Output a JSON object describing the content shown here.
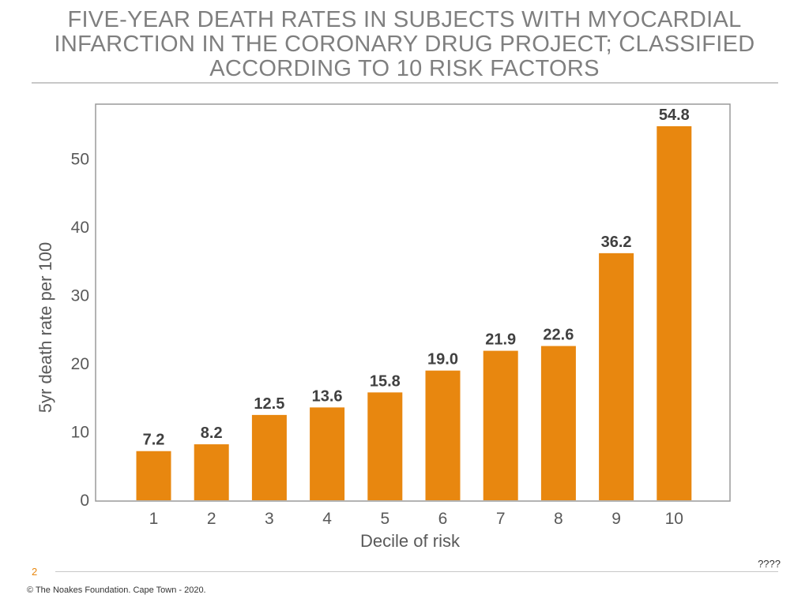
{
  "slide": {
    "title": "FIVE-YEAR DEATH RATES IN SUBJECTS WITH MYOCARDIAL INFARCTION IN THE CORONARY DRUG PROJECT; CLASSIFIED ACCORDING TO 10 RISK FACTORS",
    "page_number": "2",
    "note": "????",
    "copyright": "© The Noakes Foundation. Cape Town - 2020."
  },
  "colors": {
    "bar": "#e8870f",
    "title": "#7f7f7f",
    "axis_text": "#595959",
    "label_text": "#404040",
    "frame": "#9a9a9a"
  },
  "chart_data": {
    "type": "bar",
    "categories": [
      "1",
      "2",
      "3",
      "4",
      "5",
      "6",
      "7",
      "8",
      "9",
      "10"
    ],
    "values": [
      7.2,
      8.2,
      12.5,
      13.6,
      15.8,
      19.0,
      21.9,
      22.6,
      36.2,
      54.8
    ],
    "value_labels": [
      "7.2",
      "8.2",
      "12.5",
      "13.6",
      "15.8",
      "19.0",
      "21.9",
      "22.6",
      "36.2",
      "54.8"
    ],
    "xlabel": "Decile of risk",
    "ylabel": "5yr death rate per 100",
    "yticks": [
      0,
      10,
      20,
      30,
      40,
      50
    ],
    "ylim": [
      0,
      58
    ],
    "grid": false
  }
}
